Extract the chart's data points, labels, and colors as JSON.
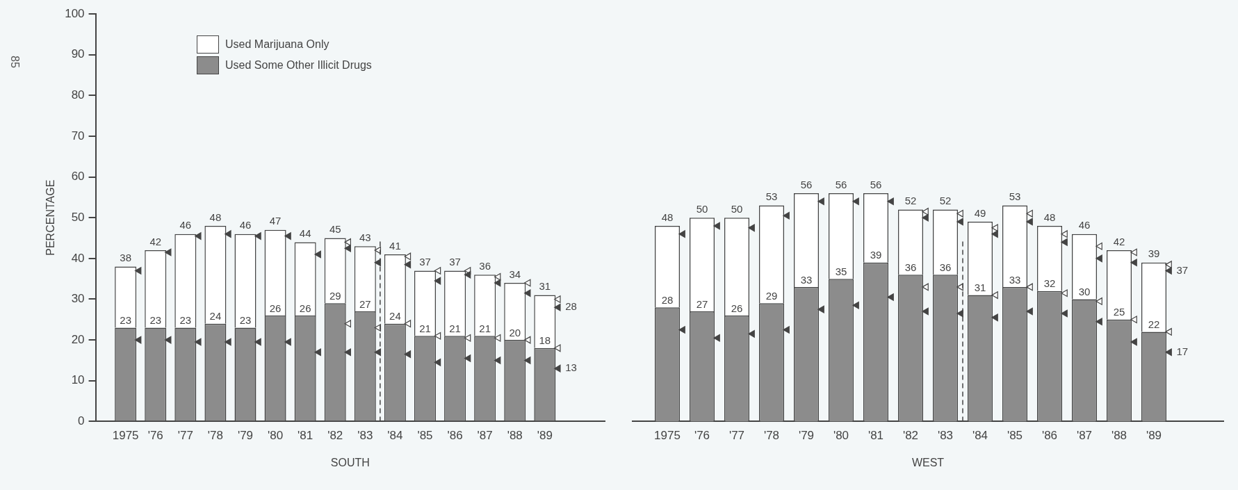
{
  "chart_data": [
    {
      "type": "bar",
      "xlabel": "SOUTH",
      "ylabel": "PERCENTAGE",
      "annotations": [
        "85"
      ],
      "stacked": true,
      "legend": "top left",
      "marker": "triangle",
      "x": [
        1975,
        1976,
        1977,
        1978,
        1979,
        1980,
        1981,
        1982,
        1983,
        1984,
        1985,
        1986,
        1987,
        1988,
        1989
      ],
      "xlim": [
        1974,
        1991
      ],
      "xticks": [
        {
          "value": 1975,
          "label": "1975"
        },
        {
          "value": 1976,
          "label": "'76"
        },
        {
          "value": 1977,
          "label": "'77"
        },
        {
          "value": 1978,
          "label": "'78"
        },
        {
          "value": 1979,
          "label": "'79"
        },
        {
          "value": 1980,
          "label": "'80"
        },
        {
          "value": 1981,
          "label": "'81"
        },
        {
          "value": 1982,
          "label": "'82"
        },
        {
          "value": 1983,
          "label": "'83"
        },
        {
          "value": 1984,
          "label": "'84"
        },
        {
          "value": 1985,
          "label": "'85"
        },
        {
          "value": 1986,
          "label": "'86"
        },
        {
          "value": 1987,
          "label": "'87"
        },
        {
          "value": 1988,
          "label": "'88"
        },
        {
          "value": 1989,
          "label": "'89"
        }
      ],
      "ylim": [
        0,
        100
      ],
      "yticks": [
        0,
        10,
        20,
        30,
        40,
        50,
        60,
        70,
        80,
        90,
        100
      ],
      "ref_lines": [
        {
          "axis": "x",
          "value": 1983.5,
          "line_style": "dashed"
        }
      ],
      "totals": [
        "38",
        "42",
        "46",
        "48",
        "46",
        "47",
        "44",
        "45",
        "43",
        "41",
        "37",
        "37",
        "36",
        "34",
        "31"
      ],
      "series": [
        {
          "name": "Used Some Other Illicit Drugs",
          "color": "#8c8c8c",
          "values": [
            23,
            23,
            23,
            24,
            23,
            26,
            26,
            29,
            27,
            24,
            21,
            21,
            21,
            20,
            18
          ],
          "value_labels": [
            "23",
            "23",
            "23",
            "24",
            "23",
            "26",
            "26",
            "29",
            "27",
            "24",
            "21",
            "21",
            "21",
            "20",
            "18"
          ]
        },
        {
          "name": "Used Marijuana Only",
          "color": "#ffffff",
          "values": [
            15,
            19,
            23,
            24,
            23,
            21,
            18,
            16,
            16,
            17,
            16,
            16,
            15,
            14,
            13
          ]
        },
        {
          "type": "scatter",
          "color": "#444444",
          "x": [
            1975.45,
            1976.45,
            1977.45,
            1978.45,
            1979.45,
            1980.45,
            1981.45,
            1982.45,
            1983.45,
            1984.45,
            1985.45,
            1986.45,
            1987.45,
            1988.45,
            1989.45
          ],
          "values": [
            37,
            41.5,
            45.5,
            46,
            45.5,
            45.5,
            41,
            42.5,
            39,
            38.5,
            34.5,
            36,
            34,
            31.5,
            28
          ],
          "value_labels": [
            null,
            null,
            null,
            null,
            null,
            null,
            null,
            null,
            null,
            null,
            null,
            null,
            null,
            null,
            "28"
          ]
        },
        {
          "type": "scatter",
          "color": "#444444",
          "x": [
            1975.45,
            1976.45,
            1977.45,
            1978.45,
            1979.45,
            1980.45,
            1981.45,
            1982.45,
            1983.45,
            1984.45,
            1985.45,
            1986.45,
            1987.45,
            1988.45,
            1989.45
          ],
          "values": [
            20,
            20,
            19.5,
            19.5,
            19.5,
            19.5,
            17,
            17,
            17,
            16.5,
            14.5,
            15.5,
            15,
            15,
            13
          ],
          "value_labels": [
            null,
            null,
            null,
            null,
            null,
            null,
            null,
            null,
            null,
            null,
            null,
            null,
            null,
            null,
            "13"
          ]
        },
        {
          "type": "scatter",
          "color": "#ffffff",
          "x": [
            1982.45,
            1983.45,
            1984.45,
            1985.45,
            1986.45,
            1987.45,
            1988.45,
            1989.45
          ],
          "values": [
            44,
            42,
            40.5,
            37,
            37,
            35.5,
            34,
            30
          ]
        },
        {
          "type": "scatter",
          "color": "#ffffff",
          "x": [
            1982.45,
            1983.45,
            1984.45,
            1985.45,
            1986.45,
            1987.45,
            1988.45,
            1989.45
          ],
          "values": [
            24,
            23,
            24,
            21,
            20.5,
            20.5,
            20,
            18
          ]
        }
      ]
    },
    {
      "type": "bar",
      "xlabel": "WEST",
      "stacked": true,
      "marker": "triangle",
      "tick_labels": "x",
      "x": [
        1975,
        1976,
        1977,
        1978,
        1979,
        1980,
        1981,
        1982,
        1983,
        1984,
        1985,
        1986,
        1987,
        1988,
        1989
      ],
      "xlim": [
        1974,
        1991
      ],
      "xticks": [
        {
          "value": 1975,
          "label": "1975"
        },
        {
          "value": 1976,
          "label": "'76"
        },
        {
          "value": 1977,
          "label": "'77"
        },
        {
          "value": 1978,
          "label": "'78"
        },
        {
          "value": 1979,
          "label": "'79"
        },
        {
          "value": 1980,
          "label": "'80"
        },
        {
          "value": 1981,
          "label": "'81"
        },
        {
          "value": 1982,
          "label": "'82"
        },
        {
          "value": 1983,
          "label": "'83"
        },
        {
          "value": 1984,
          "label": "'84"
        },
        {
          "value": 1985,
          "label": "'85"
        },
        {
          "value": 1986,
          "label": "'86"
        },
        {
          "value": 1987,
          "label": "'87"
        },
        {
          "value": 1988,
          "label": "'88"
        },
        {
          "value": 1989,
          "label": "'89"
        }
      ],
      "ylim": [
        0,
        100
      ],
      "ref_lines": [
        {
          "axis": "x",
          "value": 1983.5,
          "line_style": "dashed"
        }
      ],
      "totals": [
        "48",
        "50",
        "50",
        "53",
        "56",
        "56",
        "56",
        "52",
        "52",
        "49",
        "53",
        "48",
        "46",
        "42",
        "39"
      ],
      "series": [
        {
          "color": "#8c8c8c",
          "values": [
            28,
            27,
            26,
            29,
            33,
            35,
            39,
            36,
            36,
            31,
            33,
            32,
            30,
            25,
            22
          ],
          "value_labels": [
            "28",
            "27",
            "26",
            "29",
            "33",
            "35",
            "39",
            "36",
            "36",
            "31",
            "33",
            "32",
            "30",
            "25",
            "22"
          ]
        },
        {
          "color": "#ffffff",
          "values": [
            20,
            23,
            24,
            24,
            23,
            21,
            17,
            16,
            16,
            18,
            20,
            16,
            16,
            17,
            17
          ]
        },
        {
          "type": "scatter",
          "color": "#444444",
          "x": [
            1975.45,
            1976.45,
            1977.45,
            1978.45,
            1979.45,
            1980.45,
            1981.45,
            1982.45,
            1983.45,
            1984.45,
            1985.45,
            1986.45,
            1987.45,
            1988.45,
            1989.45
          ],
          "values": [
            46,
            48,
            47.5,
            50.5,
            54,
            54,
            54,
            50,
            49,
            46,
            49,
            44,
            40,
            39,
            37
          ],
          "value_labels": [
            null,
            null,
            null,
            null,
            null,
            null,
            null,
            null,
            null,
            null,
            null,
            null,
            null,
            null,
            "37"
          ]
        },
        {
          "type": "scatter",
          "color": "#444444",
          "x": [
            1975.45,
            1976.45,
            1977.45,
            1978.45,
            1979.45,
            1980.45,
            1981.45,
            1982.45,
            1983.45,
            1984.45,
            1985.45,
            1986.45,
            1987.45,
            1988.45,
            1989.45
          ],
          "values": [
            22.5,
            20.5,
            21.5,
            22.5,
            27.5,
            28.5,
            30.5,
            27,
            26.5,
            25.5,
            27,
            26.5,
            24.5,
            19.5,
            17
          ],
          "value_labels": [
            null,
            null,
            null,
            null,
            null,
            null,
            null,
            null,
            null,
            null,
            null,
            null,
            null,
            null,
            "17"
          ]
        },
        {
          "type": "scatter",
          "color": "#ffffff",
          "x": [
            1982.45,
            1983.45,
            1984.45,
            1985.45,
            1986.45,
            1987.45,
            1988.45,
            1989.45
          ],
          "values": [
            51.5,
            51,
            47.5,
            51,
            46,
            43,
            41.5,
            38.5
          ]
        },
        {
          "type": "scatter",
          "color": "#ffffff",
          "x": [
            1982.45,
            1983.45,
            1984.45,
            1985.45,
            1986.45,
            1987.45,
            1988.45,
            1989.45
          ],
          "values": [
            33,
            33,
            31,
            33,
            31.5,
            29.5,
            25,
            22
          ]
        }
      ]
    }
  ]
}
